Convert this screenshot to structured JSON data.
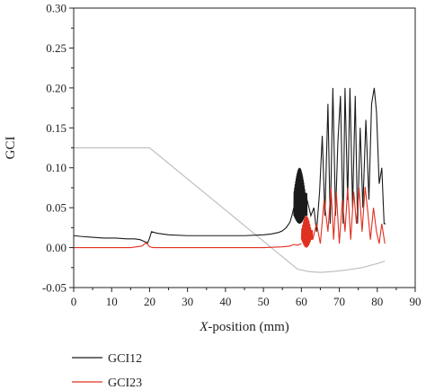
{
  "chart_data": {
    "type": "line",
    "title": "",
    "xlabel_italic": "X",
    "xlabel_rest": "-position (mm)",
    "ylabel": "GCI",
    "xlim": [
      0,
      90
    ],
    "ylim": [
      -0.05,
      0.3
    ],
    "xticks": [
      0,
      10,
      20,
      30,
      40,
      50,
      60,
      70,
      80,
      90
    ],
    "yticks": [
      -0.05,
      0.0,
      0.05,
      0.1,
      0.15,
      0.2,
      0.25,
      0.3
    ],
    "ytick_labels": [
      "-0.05",
      "0.00",
      "0.05",
      "0.10",
      "0.15",
      "0.20",
      "0.25",
      "0.30"
    ],
    "grid": false,
    "legend_position": "bottom-left",
    "series": [
      {
        "name": "GCI12",
        "color": "#1a1a1a",
        "x": [
          0,
          2,
          5,
          8,
          11,
          14,
          16,
          17.5,
          18.5,
          19.5,
          20,
          20.5,
          22,
          25,
          30,
          35,
          40,
          45,
          50,
          52,
          54,
          55,
          56,
          57,
          57.5,
          58
        ],
        "y": [
          0.015,
          0.014,
          0.013,
          0.012,
          0.012,
          0.011,
          0.011,
          0.01,
          0.008,
          0.006,
          0.012,
          0.02,
          0.018,
          0.016,
          0.015,
          0.015,
          0.015,
          0.015,
          0.016,
          0.017,
          0.019,
          0.021,
          0.025,
          0.032,
          0.04,
          0.05
        ]
      },
      {
        "name": "GCI23",
        "color": "#e03020",
        "x": [
          0,
          5,
          10,
          15,
          18,
          19,
          19.5,
          20,
          21,
          25,
          30,
          40,
          50,
          55,
          57,
          58,
          59,
          60
        ],
        "y": [
          0.0,
          0.0,
          0.0,
          0.0,
          0.002,
          0.006,
          0.004,
          0.001,
          0.0,
          0.0,
          0.0,
          0.0,
          0.0,
          0.001,
          0.002,
          0.004,
          0.003,
          0.005
        ]
      },
      {
        "name": "",
        "color": "#c0c0c0",
        "x": [
          0,
          20,
          59,
          62,
          65,
          68,
          72,
          76,
          80,
          82
        ],
        "y": [
          0.125,
          0.125,
          -0.027,
          -0.03,
          -0.031,
          -0.03,
          -0.028,
          -0.025,
          -0.02,
          -0.017
        ]
      }
    ],
    "oscillation_regions": [
      {
        "series": "GCI12",
        "x_start": 58,
        "x_end": 61.5,
        "y_min": 0.03,
        "y_max": 0.1,
        "cycles": 26
      },
      {
        "series": "GCI23",
        "x_start": 60,
        "x_end": 63,
        "y_min": 0.0,
        "y_max": 0.04,
        "cycles": 14
      }
    ],
    "spike_segments": [
      {
        "series": "GCI12",
        "x": [
          61.5,
          62.5,
          63.3,
          64,
          64.8,
          65.5,
          66.2,
          67,
          67.6,
          68.3,
          69,
          69.6,
          70.3,
          71,
          71.5,
          72.2,
          72.8,
          73.5,
          74.2,
          74.8,
          75.5,
          76.2,
          77,
          77.8,
          78.5,
          79.2,
          79.8,
          80.5,
          81.2,
          81.8,
          82.2
        ],
        "y": [
          0.06,
          0.04,
          0.05,
          0.02,
          0.07,
          0.14,
          0.04,
          0.18,
          0.03,
          0.2,
          0.04,
          0.13,
          0.19,
          0.03,
          0.2,
          0.06,
          0.2,
          0.05,
          0.19,
          0.03,
          0.15,
          0.05,
          0.16,
          0.06,
          0.18,
          0.2,
          0.17,
          0.08,
          0.1,
          0.03,
          0.03
        ]
      },
      {
        "series": "GCI23",
        "x": [
          63,
          64,
          65,
          66,
          67,
          67.8,
          68.5,
          69.2,
          70,
          70.8,
          71.5,
          72.2,
          73,
          73.8,
          74.5,
          75.2,
          76,
          76.8,
          77.5,
          78.2,
          79,
          79.8,
          80.5,
          81.2,
          82
        ],
        "y": [
          0.01,
          0.03,
          0.005,
          0.06,
          0.02,
          0.075,
          0.01,
          0.07,
          0.005,
          0.06,
          0.02,
          0.075,
          0.01,
          0.07,
          0.03,
          0.075,
          0.02,
          0.076,
          0.045,
          0.01,
          0.05,
          0.02,
          0.005,
          0.03,
          0.005
        ]
      }
    ]
  }
}
